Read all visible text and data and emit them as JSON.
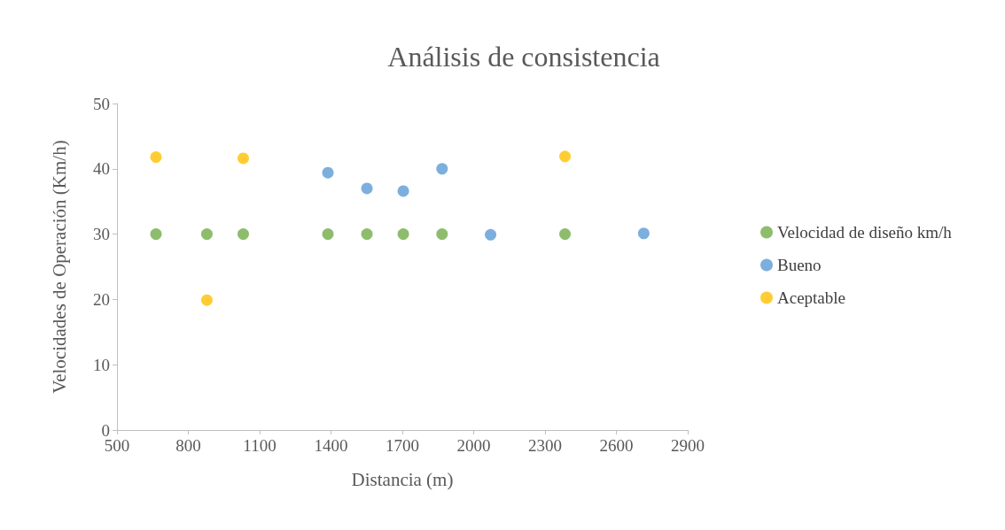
{
  "chart_data": {
    "type": "scatter",
    "title": "Análisis de consistencia",
    "xlabel": "Distancia (m)",
    "ylabel": "Velocidades de Operación (Km/h)",
    "series": [
      {
        "name": "Velocidad de diseño km/h",
        "color": "#70ad47",
        "x": [
          664,
          878,
          1031,
          1387,
          1551,
          1704,
          1867,
          2384
        ],
        "values": [
          30,
          30,
          30,
          30,
          30,
          30,
          30,
          30
        ]
      },
      {
        "name": "Bueno",
        "color": "#5b9bd5",
        "x": [
          1387,
          1551,
          1704,
          1867,
          2071,
          2715
        ],
        "values": [
          39.4,
          37.0,
          36.6,
          40.0,
          29.9,
          30.1
        ]
      },
      {
        "name": "Aceptable",
        "color": "#ffc000",
        "x": [
          664,
          878,
          1031,
          2384
        ],
        "values": [
          41.8,
          19.9,
          41.6,
          41.9
        ]
      }
    ],
    "xlim": [
      500,
      2900
    ],
    "xticks": [
      500,
      800,
      1100,
      1400,
      1700,
      2000,
      2300,
      2600,
      2900
    ],
    "ylim": [
      0,
      50
    ],
    "yticks": [
      0,
      10,
      20,
      30,
      40,
      50
    ],
    "grid": false,
    "legend": "right",
    "marker": "circle"
  }
}
